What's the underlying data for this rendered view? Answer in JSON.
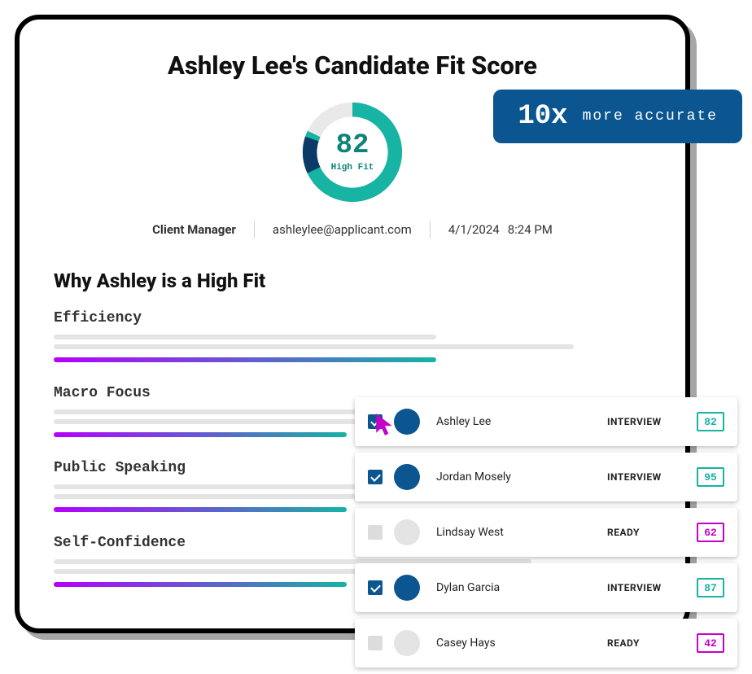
{
  "title": "Ashley Lee's Candidate Fit Score",
  "gauge": {
    "score": "82",
    "label": "High Fit",
    "percent": 82,
    "ring_color_main": "#17b3a3",
    "ring_color_accent": "#0b3a66",
    "ring_bg": "#e9e9e9",
    "text_color": "#0e8478"
  },
  "meta": {
    "role": "Client Manager",
    "email": "ashleylee@applicant.com",
    "date": "4/1/2024",
    "time": "8:24 PM"
  },
  "why_title": "Why Ashley is a High Fit",
  "traits": [
    {
      "name": "Efficiency",
      "grey1_width": 64,
      "grey2_width": 87,
      "color_width": 64,
      "gradient_from": "#b400ff",
      "gradient_to": "#17b3a3"
    },
    {
      "name": "Macro Focus",
      "grey1_width": 58,
      "grey2_width": 90,
      "color_width": 49,
      "gradient_from": "#b400ff",
      "gradient_to": "#17b3a3"
    },
    {
      "name": "Public Speaking",
      "grey1_width": 86,
      "grey2_width": 90,
      "color_width": 49,
      "gradient_from": "#b400ff",
      "gradient_to": "#17b3a3"
    },
    {
      "name": "Self-Confidence",
      "grey1_width": 80,
      "grey2_width": 90,
      "color_width": 49,
      "gradient_from": "#b400ff",
      "gradient_to": "#17b3a3"
    }
  ],
  "trait_grey_color": "#e4e4e4",
  "badge": {
    "big": "10x",
    "small": "more accurate",
    "bg": "#0b5690",
    "fg": "#ffffff"
  },
  "candidates": [
    {
      "name": "Ashley Lee",
      "status": "INTERVIEW",
      "score": "82",
      "checked": true,
      "avatar_color": "#0b5690",
      "score_color": "#17b3a3",
      "cursor": true
    },
    {
      "name": "Jordan Mosely",
      "status": "INTERVIEW",
      "score": "95",
      "checked": true,
      "avatar_color": "#0b5690",
      "score_color": "#17b3a3"
    },
    {
      "name": "Lindsay West",
      "status": "READY",
      "score": "62",
      "checked": false,
      "avatar_color": "#e4e4e4",
      "score_color": "#c400c9"
    },
    {
      "name": "Dylan Garcia",
      "status": "INTERVIEW",
      "score": "87",
      "checked": true,
      "avatar_color": "#0b5690",
      "score_color": "#17b3a3"
    },
    {
      "name": "Casey Hays",
      "status": "READY",
      "score": "42",
      "checked": false,
      "avatar_color": "#e4e4e4",
      "score_color": "#c400c9"
    }
  ],
  "cursor_color": "#c400c9"
}
